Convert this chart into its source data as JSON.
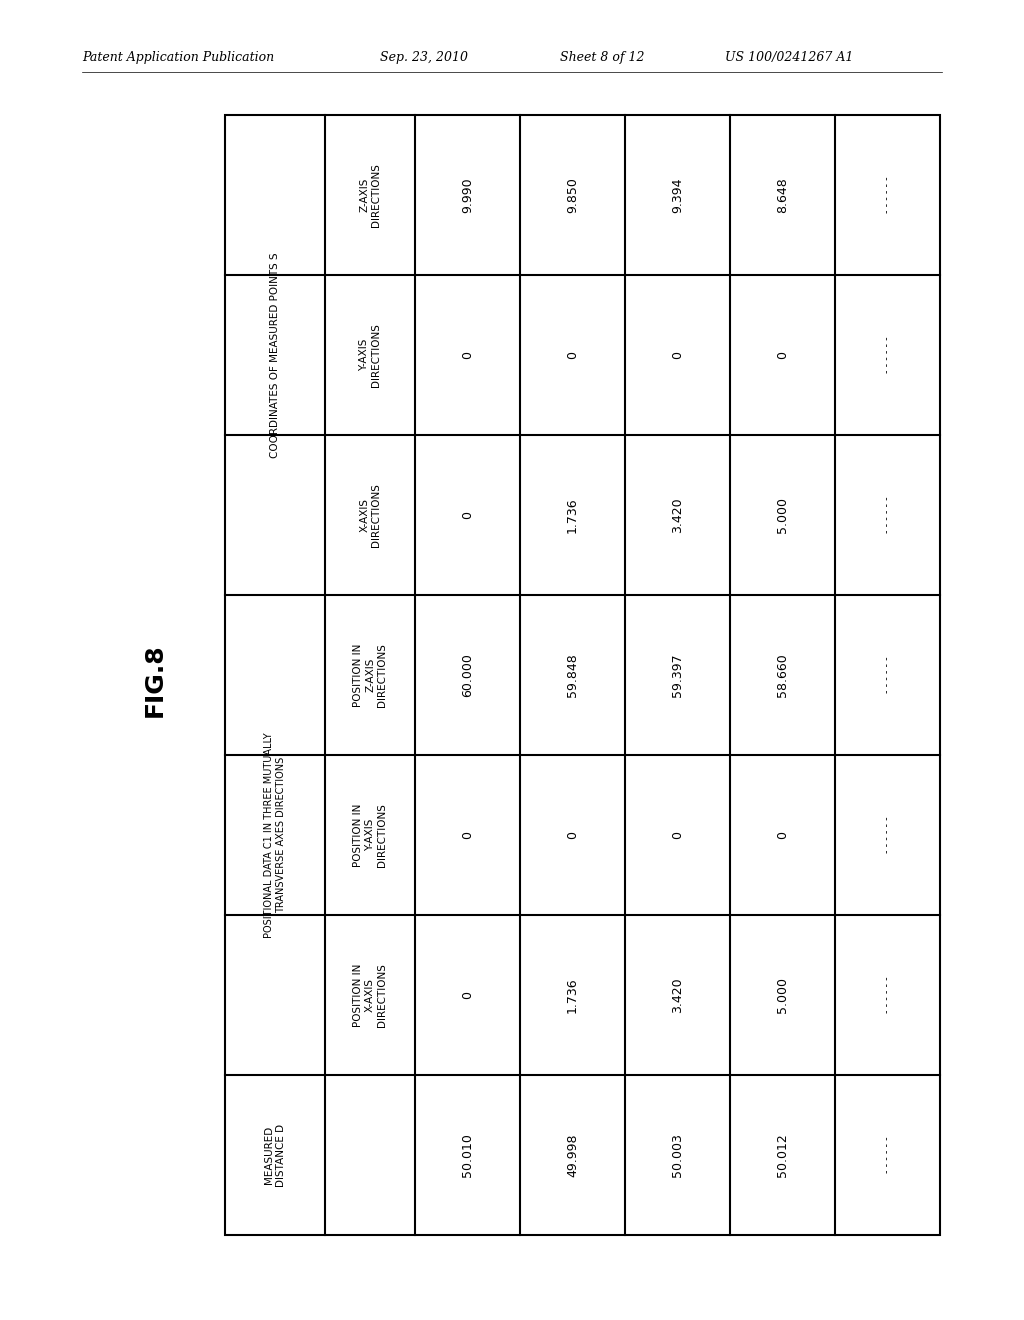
{
  "header_text": "Patent Application Publication",
  "header_date": "Sep. 23, 2010",
  "header_sheet": "Sheet 8 of 12",
  "header_patent": "US 100/0241267 A1",
  "fig_label": "FIG.8",
  "background_color": "#ffffff",
  "table": {
    "row_groups": [
      {
        "label": "COORDINATES OF MEASURED POINTS S",
        "span": 3,
        "sub_rows": [
          "Z-AXIS\nDIRECTIONS",
          "Y-AXIS\nDIRECTIONS",
          "X-AXIS\nDIRECTIONS"
        ]
      },
      {
        "label": "POSITIONAL DATA C1 IN THREE MUTUALLY\nTRANSVERSE AXES DIRECTIONS",
        "span": 3,
        "sub_rows": [
          "POSITION IN\nZ-AXIS\nDIRECTIONS",
          "POSITION IN\nY-AXIS\nDIRECTIONS",
          "POSITION IN\nX-AXIS\nDIRECTIONS"
        ]
      },
      {
        "label": "MEASURED\nDISTANCE D",
        "span": 1
      }
    ],
    "data_cols": [
      [
        "9.990",
        "0",
        "0",
        "60.000",
        "0",
        "0",
        "50.010"
      ],
      [
        "9.850",
        "0",
        "1.736",
        "59.848",
        "0",
        "1.736",
        "49.998"
      ],
      [
        "9.394",
        "0",
        "3.420",
        "59.397",
        "0",
        "3.420",
        "50.003"
      ],
      [
        "8.648",
        "0",
        "5.000",
        "58.660",
        "0",
        "5.000",
        "50.012"
      ],
      [
        "---------",
        "---------",
        "---------",
        "---------",
        "---------",
        "---------",
        "---------"
      ]
    ]
  }
}
